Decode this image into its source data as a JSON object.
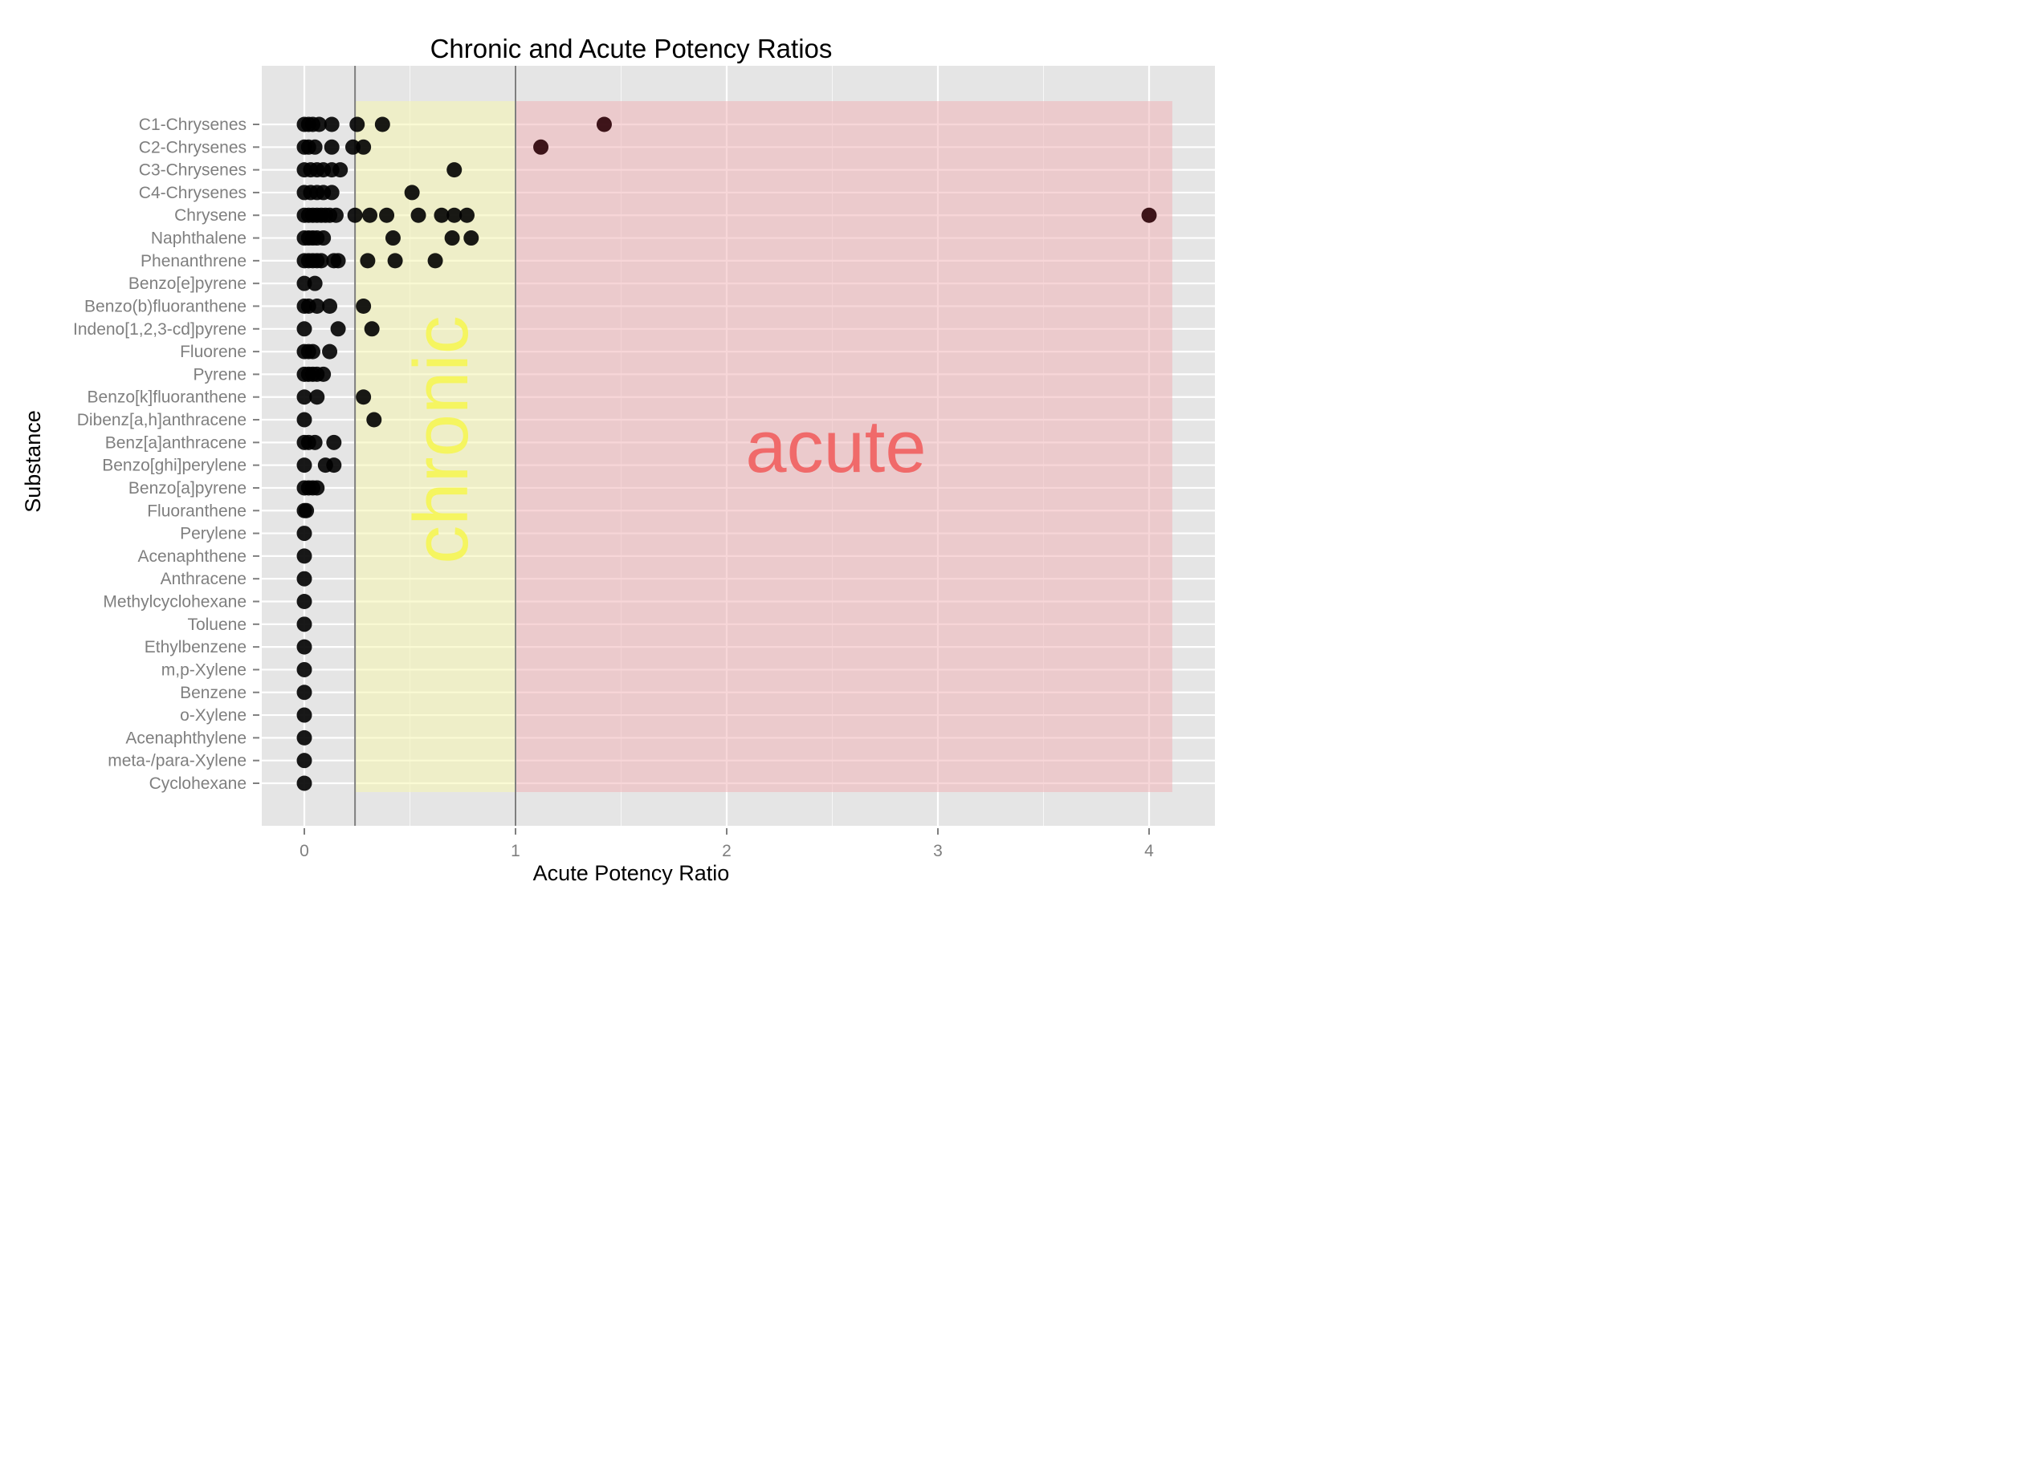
{
  "chart_data": {
    "type": "scatter",
    "title": "Chronic and Acute Potency Ratios",
    "xlabel": "Acute Potency Ratio",
    "ylabel": "Substance",
    "xlim": [
      -0.2,
      4.3
    ],
    "xticks": [
      0,
      1,
      2,
      3,
      4
    ],
    "grid": true,
    "categories": [
      "C1-Chrysenes",
      "C2-Chrysenes",
      "C3-Chrysenes",
      "C4-Chrysenes",
      "Chrysene",
      "Naphthalene",
      "Phenanthrene",
      "Benzo[e]pyrene",
      "Benzo(b)fluoranthene",
      "Indeno[1,2,3-cd]pyrene",
      "Fluorene",
      "Pyrene",
      "Benzo[k]fluoranthene",
      "Dibenz[a,h]anthracene",
      "Benz[a]anthracene",
      "Benzo[ghi]perylene",
      "Benzo[a]pyrene",
      "Fluoranthene",
      "Perylene",
      "Acenaphthene",
      "Anthracene",
      "Methylcyclohexane",
      "Toluene",
      "Ethylbenzene",
      "m,p-Xylene",
      "Benzene",
      "o-Xylene",
      "Acenaphthylene",
      "meta-/para-Xylene",
      "Cyclohexane"
    ],
    "regions": [
      {
        "label": "chronic",
        "xmin": 0.24,
        "xmax": 1.0,
        "color": "#f5f5b0",
        "text_color": "#f5f560"
      },
      {
        "label": "acute",
        "xmin": 1.0,
        "xmax": 4.11,
        "color": "#f0b4b8",
        "text_color": "#f06a6a"
      }
    ],
    "vlines": [
      0.24,
      1.0
    ],
    "points": [
      {
        "substance": "C1-Chrysenes",
        "x": [
          0.0,
          0.02,
          0.04,
          0.07,
          0.13,
          0.25,
          0.37,
          1.42
        ]
      },
      {
        "substance": "C2-Chrysenes",
        "x": [
          0.0,
          0.02,
          0.05,
          0.13,
          0.23,
          0.28,
          1.12
        ]
      },
      {
        "substance": "C3-Chrysenes",
        "x": [
          0.0,
          0.03,
          0.06,
          0.09,
          0.13,
          0.17,
          0.71
        ]
      },
      {
        "substance": "C4-Chrysenes",
        "x": [
          0.0,
          0.03,
          0.06,
          0.09,
          0.13,
          0.51
        ]
      },
      {
        "substance": "Chrysene",
        "x": [
          0.0,
          0.02,
          0.04,
          0.06,
          0.08,
          0.1,
          0.12,
          0.15,
          0.24,
          0.31,
          0.39,
          0.54,
          0.65,
          0.71,
          0.77,
          4.0
        ]
      },
      {
        "substance": "Naphthalene",
        "x": [
          0.0,
          0.02,
          0.04,
          0.06,
          0.09,
          0.42,
          0.7,
          0.79
        ]
      },
      {
        "substance": "Phenanthrene",
        "x": [
          0.0,
          0.02,
          0.04,
          0.06,
          0.08,
          0.14,
          0.16,
          0.3,
          0.43,
          0.62
        ]
      },
      {
        "substance": "Benzo[e]pyrene",
        "x": [
          0.0,
          0.05
        ]
      },
      {
        "substance": "Benzo(b)fluoranthene",
        "x": [
          0.0,
          0.02,
          0.06,
          0.12,
          0.28
        ]
      },
      {
        "substance": "Indeno[1,2,3-cd]pyrene",
        "x": [
          0.0,
          0.16,
          0.32
        ]
      },
      {
        "substance": "Fluorene",
        "x": [
          0.0,
          0.02,
          0.04,
          0.12
        ]
      },
      {
        "substance": "Pyrene",
        "x": [
          0.0,
          0.02,
          0.04,
          0.06,
          0.09
        ]
      },
      {
        "substance": "Benzo[k]fluoranthene",
        "x": [
          0.0,
          0.06,
          0.28
        ]
      },
      {
        "substance": "Dibenz[a,h]anthracene",
        "x": [
          0.0,
          0.33
        ]
      },
      {
        "substance": "Benz[a]anthracene",
        "x": [
          0.0,
          0.02,
          0.05,
          0.14
        ]
      },
      {
        "substance": "Benzo[ghi]perylene",
        "x": [
          0.0,
          0.1,
          0.14
        ]
      },
      {
        "substance": "Benzo[a]pyrene",
        "x": [
          0.0,
          0.02,
          0.04,
          0.06
        ]
      },
      {
        "substance": "Fluoranthene",
        "x": [
          0.0,
          0.01
        ]
      },
      {
        "substance": "Perylene",
        "x": [
          0.0
        ]
      },
      {
        "substance": "Acenaphthene",
        "x": [
          0.0
        ]
      },
      {
        "substance": "Anthracene",
        "x": [
          0.0
        ]
      },
      {
        "substance": "Methylcyclohexane",
        "x": [
          0.0
        ]
      },
      {
        "substance": "Toluene",
        "x": [
          0.0
        ]
      },
      {
        "substance": "Ethylbenzene",
        "x": [
          0.0
        ]
      },
      {
        "substance": "m,p-Xylene",
        "x": [
          0.0
        ]
      },
      {
        "substance": "Benzene",
        "x": [
          0.0
        ]
      },
      {
        "substance": "o-Xylene",
        "x": [
          0.0
        ]
      },
      {
        "substance": "Acenaphthylene",
        "x": [
          0.0
        ]
      },
      {
        "substance": "meta-/para-Xylene",
        "x": [
          0.0
        ]
      },
      {
        "substance": "Cyclohexane",
        "x": [
          0.0
        ]
      }
    ],
    "colors": {
      "panel_bg": "#e5e5e5",
      "grid": "#ffffff",
      "point": "#000000",
      "point_acute": "#2a0005",
      "vline": "#7f7f7f"
    }
  }
}
